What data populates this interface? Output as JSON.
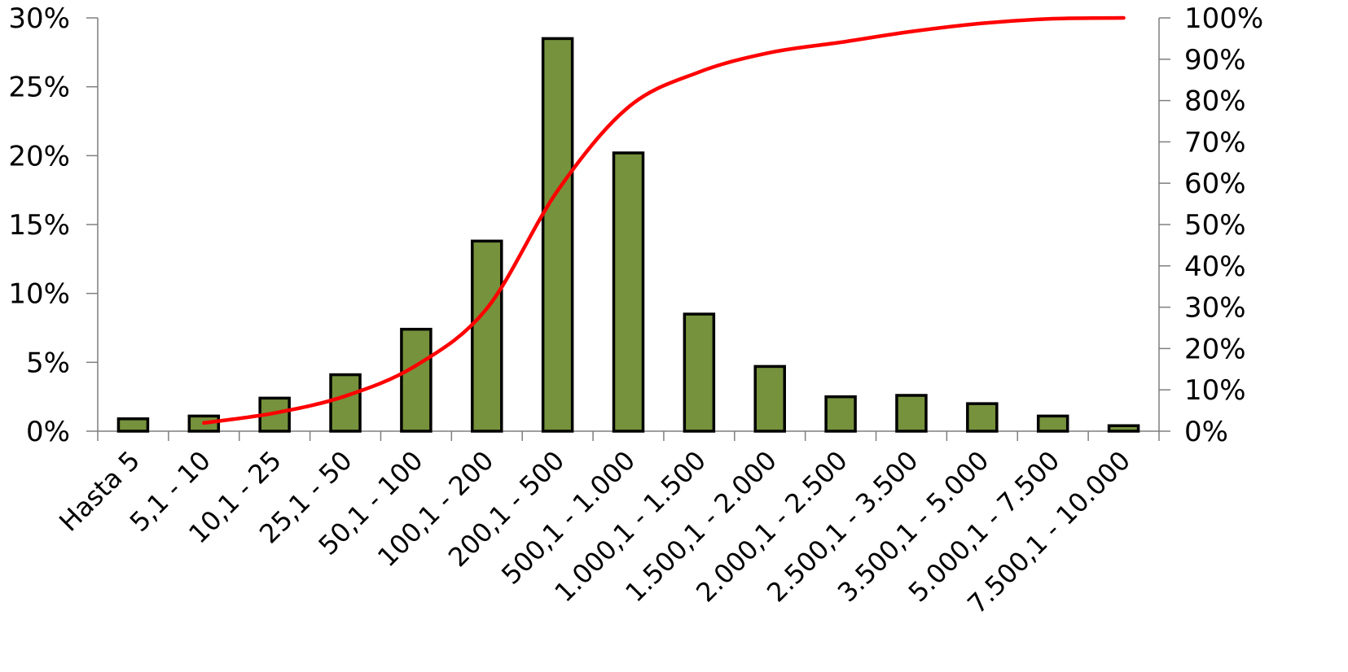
{
  "chart_data": {
    "type": "bar",
    "categories": [
      "Hasta 5",
      "5,1 - 10",
      "10,1 - 25",
      "25,1 - 50",
      "50,1 - 100",
      "100,1 - 200",
      "200,1 - 500",
      "500,1 - 1.000",
      "1.000,1 - 1.500",
      "1.500,1 - 2.000",
      "2.000,1 - 2.500",
      "2.500,1 - 3.500",
      "3.500,1 - 5.000",
      "5.000,1 - 7.500",
      "7.500,1 - 10.000"
    ],
    "series": [
      {
        "type": "bar",
        "axis": "left",
        "color": "#76923c",
        "values": [
          0.9,
          1.1,
          2.4,
          4.1,
          7.4,
          13.8,
          28.5,
          20.2,
          8.5,
          4.7,
          2.5,
          2.6,
          2.0,
          1.1,
          0.4
        ]
      },
      {
        "type": "line",
        "axis": "right",
        "color": "#ff0000",
        "smooth": true,
        "values": [
          null,
          2.0,
          4.4,
          8.5,
          15.9,
          29.7,
          58.2,
          78.4,
          86.9,
          91.6,
          94.1,
          96.7,
          98.7,
          99.8,
          100
        ]
      }
    ],
    "y_left": {
      "min": 0,
      "max": 30,
      "ticks": [
        "0%",
        "5%",
        "10%",
        "15%",
        "20%",
        "25%",
        "30%"
      ]
    },
    "y_right": {
      "min": 0,
      "max": 100,
      "ticks": [
        "0%",
        "10%",
        "20%",
        "30%",
        "40%",
        "50%",
        "60%",
        "70%",
        "80%",
        "90%",
        "100%"
      ]
    },
    "grid": false,
    "legend": "none"
  }
}
